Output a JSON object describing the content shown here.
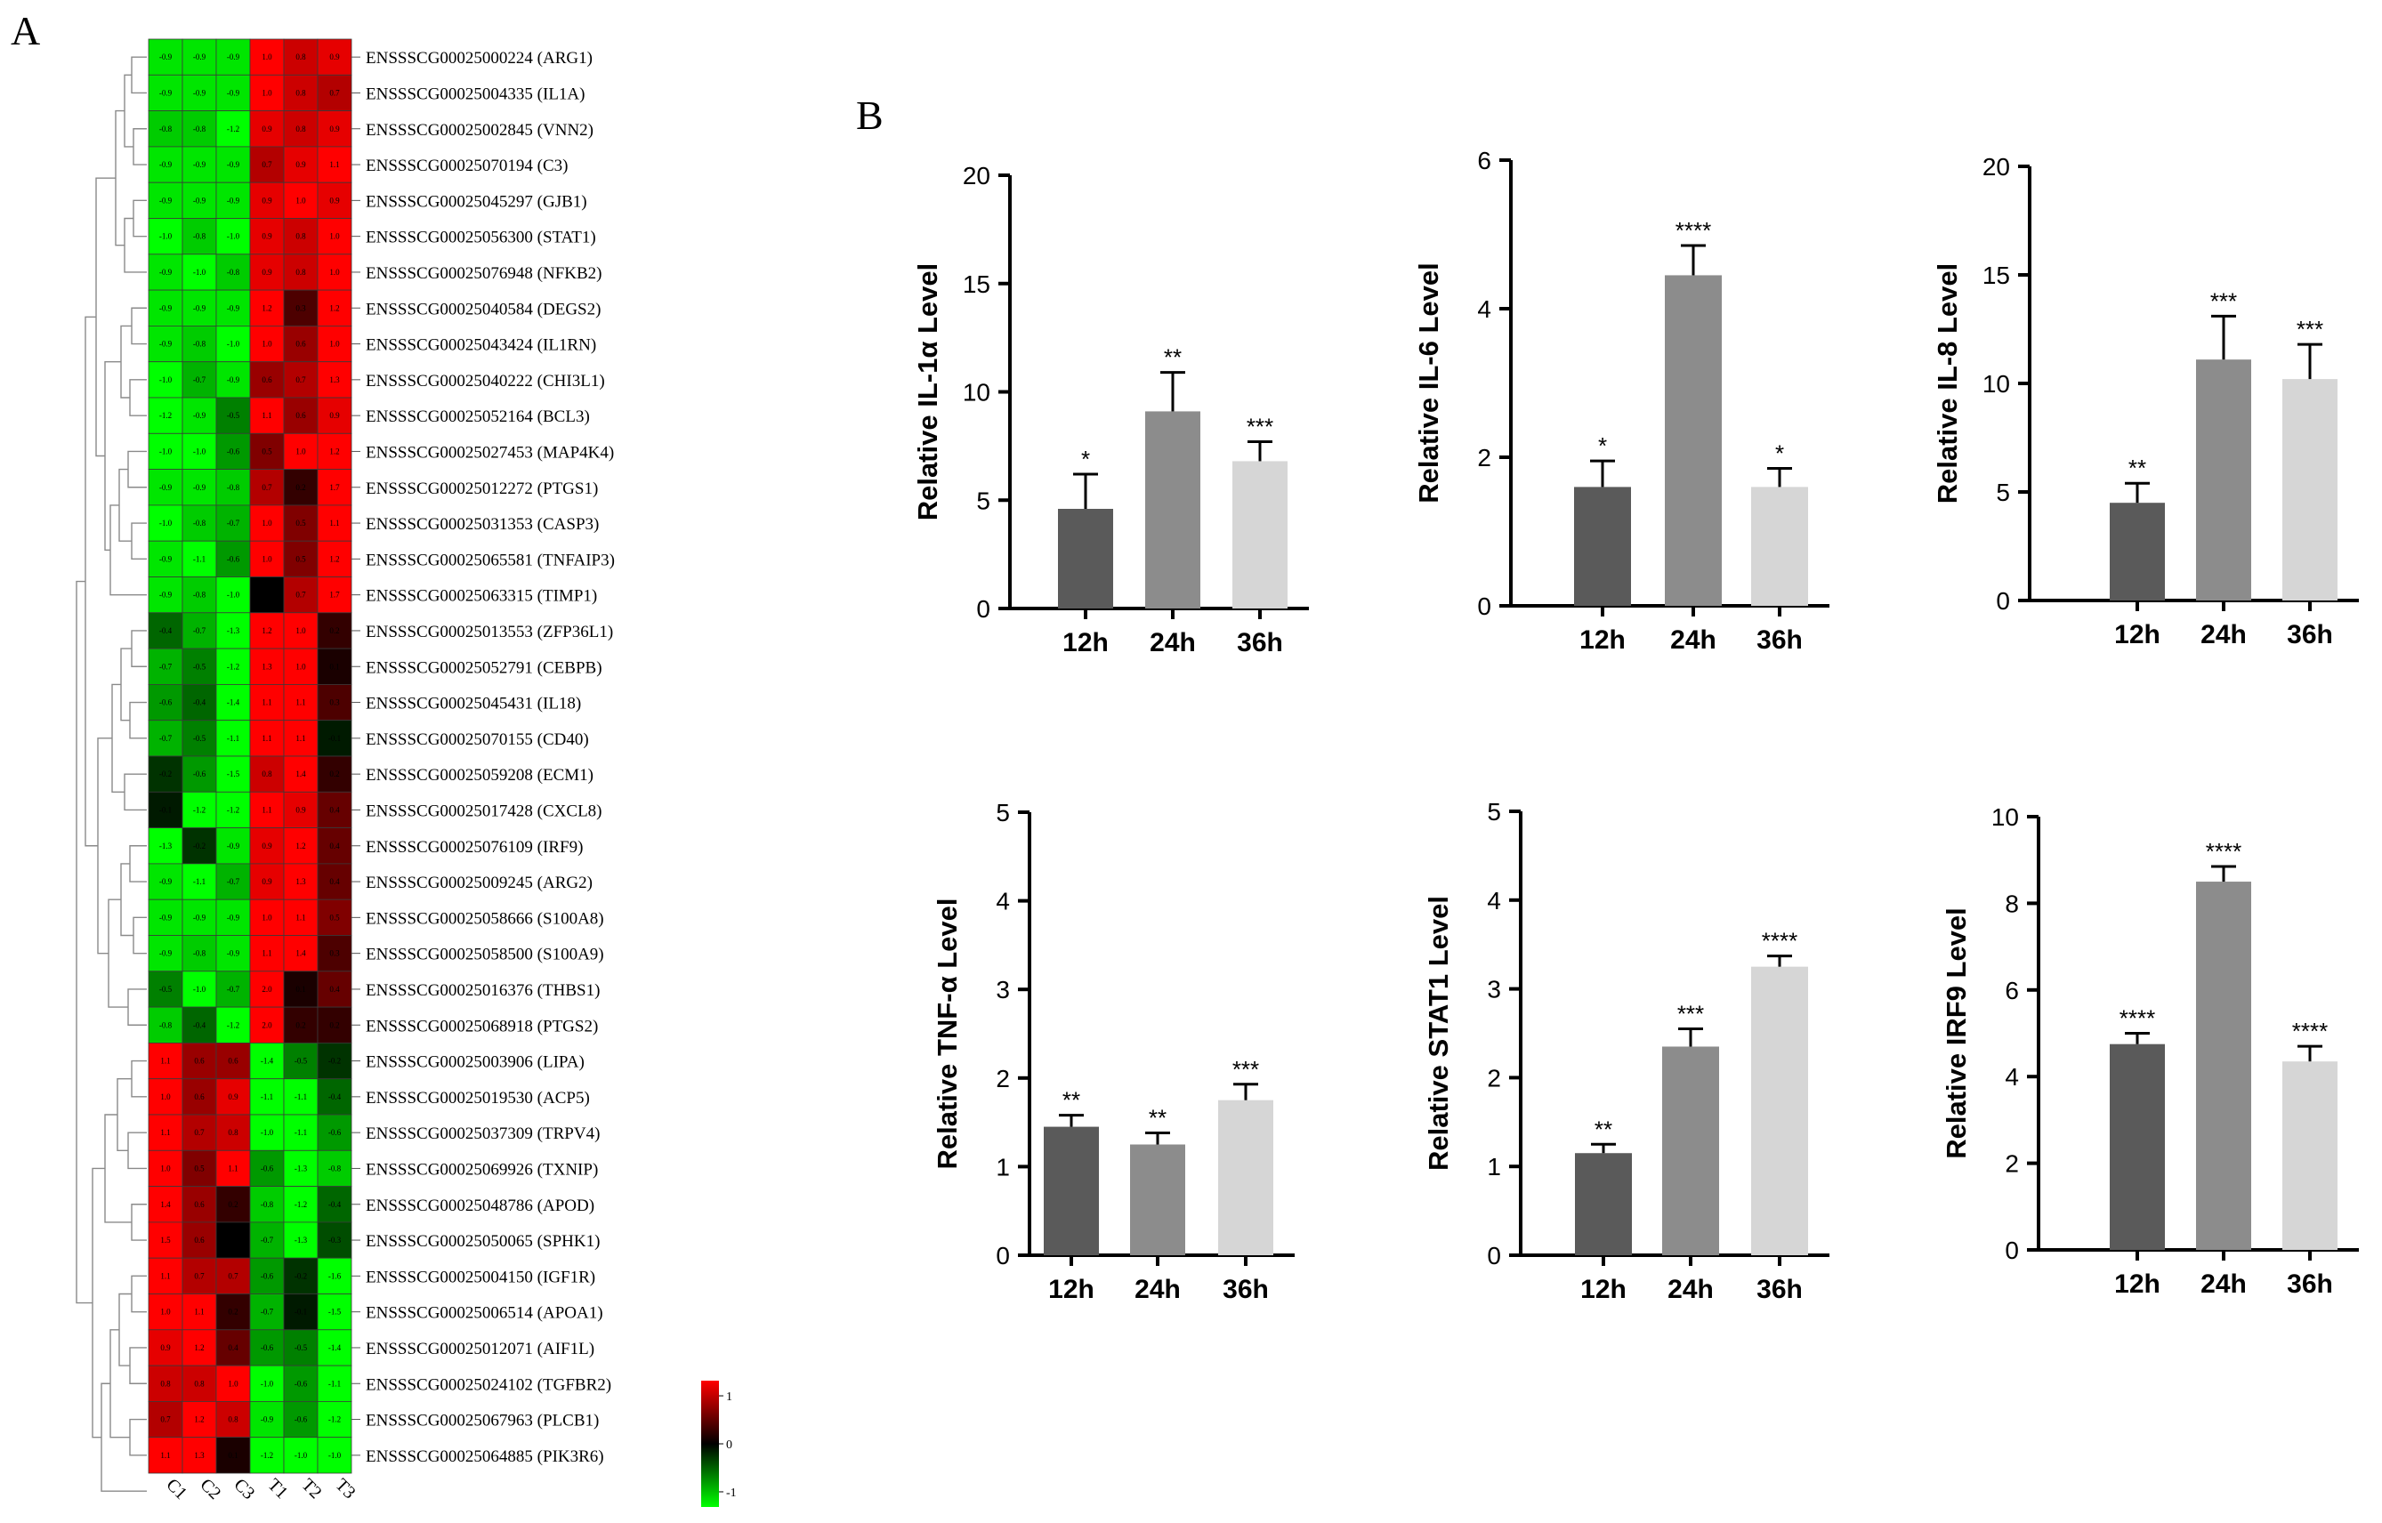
{
  "panels": {
    "a_label": "A",
    "b_label": "B"
  },
  "heatmap": {
    "columns": [
      "C1",
      "C2",
      "C3",
      "T1",
      "T2",
      "T3"
    ],
    "rows": [
      {
        "gene": "ENSSSCG00025000224 (ARG1)",
        "values": [
          -0.9,
          -0.9,
          -0.9,
          1.0,
          0.8,
          0.9
        ]
      },
      {
        "gene": "ENSSSCG00025004335 (IL1A)",
        "values": [
          -0.9,
          -0.9,
          -0.9,
          1.0,
          0.8,
          0.7
        ]
      },
      {
        "gene": "ENSSSCG00025002845 (VNN2)",
        "values": [
          -0.8,
          -0.8,
          -1.2,
          0.9,
          0.8,
          0.9
        ]
      },
      {
        "gene": "ENSSSCG00025070194 (C3)",
        "values": [
          -0.9,
          -0.9,
          -0.9,
          0.7,
          0.9,
          1.1
        ]
      },
      {
        "gene": "ENSSSCG00025045297 (GJB1)",
        "values": [
          -0.9,
          -0.9,
          -0.9,
          0.9,
          1.0,
          0.9
        ]
      },
      {
        "gene": "ENSSSCG00025056300 (STAT1)",
        "values": [
          -1.0,
          -0.8,
          -1.0,
          0.9,
          0.8,
          1.0
        ]
      },
      {
        "gene": "ENSSSCG00025076948 (NFKB2)",
        "values": [
          -0.9,
          -1.0,
          -0.8,
          0.9,
          0.8,
          1.0
        ]
      },
      {
        "gene": "ENSSSCG00025040584 (DEGS2)",
        "values": [
          -0.9,
          -0.9,
          -0.9,
          1.2,
          0.3,
          1.2
        ]
      },
      {
        "gene": "ENSSSCG00025043424 (IL1RN)",
        "values": [
          -0.9,
          -0.8,
          -1.0,
          1.0,
          0.6,
          1.0
        ]
      },
      {
        "gene": "ENSSSCG00025040222 (CHI3L1)",
        "values": [
          -1.0,
          -0.7,
          -0.9,
          0.6,
          0.7,
          1.3
        ]
      },
      {
        "gene": "ENSSSCG00025052164 (BCL3)",
        "values": [
          -1.2,
          -0.9,
          -0.5,
          1.1,
          0.6,
          0.9
        ]
      },
      {
        "gene": "ENSSSCG00025027453 (MAP4K4)",
        "values": [
          -1.0,
          -1.0,
          -0.6,
          0.5,
          1.0,
          1.2
        ]
      },
      {
        "gene": "ENSSSCG00025012272 (PTGS1)",
        "values": [
          -0.9,
          -0.9,
          -0.8,
          0.7,
          0.2,
          1.7
        ]
      },
      {
        "gene": "ENSSSCG00025031353 (CASP3)",
        "values": [
          -1.0,
          -0.8,
          -0.7,
          1.0,
          0.5,
          1.1
        ]
      },
      {
        "gene": "ENSSSCG00025065581 (TNFAIP3)",
        "values": [
          -0.9,
          -1.1,
          -0.6,
          1.0,
          0.5,
          1.2
        ]
      },
      {
        "gene": "ENSSSCG00025063315 (TIMP1)",
        "values": [
          -0.9,
          -0.8,
          -1.0,
          0.0,
          0.7,
          1.7
        ]
      },
      {
        "gene": "ENSSSCG00025013553 (ZFP36L1)",
        "values": [
          -0.4,
          -0.7,
          -1.3,
          1.2,
          1.0,
          0.2
        ]
      },
      {
        "gene": "ENSSSCG00025052791 (CEBPB)",
        "values": [
          -0.7,
          -0.5,
          -1.2,
          1.3,
          1.0,
          0.1
        ]
      },
      {
        "gene": "ENSSSCG00025045431 (IL18)",
        "values": [
          -0.6,
          -0.4,
          -1.4,
          1.1,
          1.1,
          0.3
        ]
      },
      {
        "gene": "ENSSSCG00025070155 (CD40)",
        "values": [
          -0.7,
          -0.5,
          -1.1,
          1.1,
          1.1,
          -0.1
        ]
      },
      {
        "gene": "ENSSSCG00025059208 (ECM1)",
        "values": [
          -0.2,
          -0.6,
          -1.5,
          0.8,
          1.4,
          0.2
        ]
      },
      {
        "gene": "ENSSSCG00025017428 (CXCL8)",
        "values": [
          -0.1,
          -1.2,
          -1.2,
          1.1,
          0.9,
          0.4
        ]
      },
      {
        "gene": "ENSSSCG00025076109 (IRF9)",
        "values": [
          -1.3,
          -0.2,
          -0.9,
          0.9,
          1.2,
          0.4
        ]
      },
      {
        "gene": "ENSSSCG00025009245 (ARG2)",
        "values": [
          -0.9,
          -1.1,
          -0.7,
          0.9,
          1.3,
          0.4
        ]
      },
      {
        "gene": "ENSSSCG00025058666 (S100A8)",
        "values": [
          -0.9,
          -0.9,
          -0.9,
          1.0,
          1.1,
          0.5
        ]
      },
      {
        "gene": "ENSSSCG00025058500 (S100A9)",
        "values": [
          -0.9,
          -0.8,
          -0.9,
          1.1,
          1.4,
          0.3
        ]
      },
      {
        "gene": "ENSSSCG00025016376 (THBS1)",
        "values": [
          -0.5,
          -1.0,
          -0.7,
          2.0,
          0.1,
          0.4
        ]
      },
      {
        "gene": "ENSSSCG00025068918 (PTGS2)",
        "values": [
          -0.8,
          -0.4,
          -1.2,
          2.0,
          0.2,
          0.2
        ]
      },
      {
        "gene": "ENSSSCG00025003906 (LIPA)",
        "values": [
          1.1,
          0.6,
          0.6,
          -1.4,
          -0.5,
          -0.2
        ]
      },
      {
        "gene": "ENSSSCG00025019530 (ACP5)",
        "values": [
          1.0,
          0.6,
          0.9,
          -1.1,
          -1.1,
          -0.4
        ]
      },
      {
        "gene": "ENSSSCG00025037309 (TRPV4)",
        "values": [
          1.1,
          0.7,
          0.8,
          -1.0,
          -1.1,
          -0.6
        ]
      },
      {
        "gene": "ENSSSCG00025069926 (TXNIP)",
        "values": [
          1.0,
          0.5,
          1.1,
          -0.6,
          -1.3,
          -0.8
        ]
      },
      {
        "gene": "ENSSSCG00025048786 (APOD)",
        "values": [
          1.4,
          0.6,
          0.2,
          -0.8,
          -1.2,
          -0.4
        ]
      },
      {
        "gene": "ENSSSCG00025050065 (SPHK1)",
        "values": [
          1.5,
          0.6,
          0.0,
          -0.7,
          -1.3,
          -0.3
        ]
      },
      {
        "gene": "ENSSSCG00025004150 (IGF1R)",
        "values": [
          1.1,
          0.7,
          0.7,
          -0.6,
          -0.2,
          -1.6
        ]
      },
      {
        "gene": "ENSSSCG00025006514 (APOA1)",
        "values": [
          1.0,
          1.1,
          0.2,
          -0.7,
          -0.1,
          -1.5
        ]
      },
      {
        "gene": "ENSSSCG00025012071 (AIF1L)",
        "values": [
          0.9,
          1.2,
          0.4,
          -0.6,
          -0.5,
          -1.4
        ]
      },
      {
        "gene": "ENSSSCG00025024102 (TGFBR2)",
        "values": [
          0.8,
          0.8,
          1.0,
          -1.0,
          -0.6,
          -1.1
        ]
      },
      {
        "gene": "ENSSSCG00025067963 (PLCB1)",
        "values": [
          0.7,
          1.2,
          0.8,
          -0.9,
          -0.6,
          -1.2
        ]
      },
      {
        "gene": "ENSSSCG00025064885 (PIK3R6)",
        "values": [
          1.1,
          1.3,
          0.1,
          -1.2,
          -1.0,
          -1.0
        ]
      }
    ],
    "legend_ticks": [
      "1",
      "0",
      "-1"
    ],
    "colors": {
      "high": "#ff0000",
      "mid": "#000000",
      "low": "#00ff00"
    }
  },
  "chart_data": [
    {
      "type": "bar",
      "ylabel": "Relative IL-1α Level",
      "categories": [
        "12h",
        "24h",
        "36h"
      ],
      "values": [
        4.6,
        9.1,
        6.8
      ],
      "errors": [
        1.6,
        1.8,
        0.9
      ],
      "significance": [
        "*",
        "**",
        "***"
      ],
      "ylim": [
        0,
        20
      ],
      "yticks": [
        0,
        5,
        10,
        15,
        20
      ]
    },
    {
      "type": "bar",
      "ylabel": "Relative IL-6 Level",
      "categories": [
        "12h",
        "24h",
        "36h"
      ],
      "values": [
        1.6,
        4.45,
        1.6
      ],
      "errors": [
        0.35,
        0.4,
        0.25
      ],
      "significance": [
        "*",
        "****",
        "*"
      ],
      "ylim": [
        0,
        6
      ],
      "yticks": [
        0,
        2,
        4,
        6
      ]
    },
    {
      "type": "bar",
      "ylabel": "Relative IL-8 Level",
      "categories": [
        "12h",
        "24h",
        "36h"
      ],
      "values": [
        4.5,
        11.1,
        10.2
      ],
      "errors": [
        0.9,
        2.0,
        1.6
      ],
      "significance": [
        "**",
        "***",
        "***"
      ],
      "ylim": [
        0,
        20
      ],
      "yticks": [
        0,
        5,
        10,
        15,
        20
      ]
    },
    {
      "type": "bar",
      "ylabel": "Relative TNF-α Level",
      "categories": [
        "12h",
        "24h",
        "36h"
      ],
      "values": [
        1.45,
        1.25,
        1.75
      ],
      "errors": [
        0.13,
        0.13,
        0.18
      ],
      "significance": [
        "**",
        "**",
        "***"
      ],
      "ylim": [
        0,
        5
      ],
      "yticks": [
        0,
        1,
        2,
        3,
        4,
        5
      ]
    },
    {
      "type": "bar",
      "ylabel": "Relative STAT1 Level",
      "categories": [
        "12h",
        "24h",
        "36h"
      ],
      "values": [
        1.15,
        2.35,
        3.25
      ],
      "errors": [
        0.1,
        0.2,
        0.12
      ],
      "significance": [
        "**",
        "***",
        "****"
      ],
      "ylim": [
        0,
        5
      ],
      "yticks": [
        0,
        1,
        2,
        3,
        4,
        5
      ]
    },
    {
      "type": "bar",
      "ylabel": "Relative IRF9 Level",
      "categories": [
        "12h",
        "24h",
        "36h"
      ],
      "values": [
        4.75,
        8.5,
        4.35
      ],
      "errors": [
        0.25,
        0.35,
        0.35
      ],
      "significance": [
        "****",
        "****",
        "****"
      ],
      "ylim": [
        0,
        10
      ],
      "yticks": [
        0,
        2,
        4,
        6,
        8,
        10
      ]
    }
  ],
  "bar_colors": [
    "#5a5a5a",
    "#8c8c8c",
    "#d6d6d6"
  ]
}
